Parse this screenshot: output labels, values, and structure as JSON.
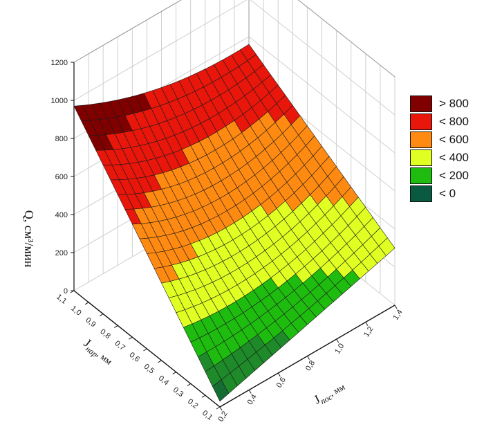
{
  "chart_data": {
    "type": "surface3d",
    "title": "",
    "zlabel": "Q, см³/мин",
    "ylabel_main": "J",
    "ylabel_sub": "нар",
    "ylabel_unit": ", мм",
    "xlabel_main": "J",
    "xlabel_sub": "пос",
    "xlabel_unit": ", мм",
    "zlim": [
      0,
      1200
    ],
    "z_ticks": [
      "1200",
      "1000",
      "800",
      "600",
      "400",
      "200",
      "0"
    ],
    "y_ticks": [
      "1,1",
      "1,0",
      "0,9",
      "0,8",
      "0,7",
      "0,6",
      "0,5",
      "0,4",
      "0,3",
      "0,2",
      "0,1"
    ],
    "x_ticks": [
      "0,2",
      "0,4",
      "0,6",
      "0,8",
      "1,0",
      "1,2",
      "1,4"
    ],
    "surface_corners": [
      {
        "J_nar": 1.1,
        "J_pos": 0.2,
        "Q": 970
      },
      {
        "J_nar": 1.1,
        "J_pos": 1.4,
        "Q": 760
      },
      {
        "J_nar": 0.1,
        "J_pos": 0.2,
        "Q": 30
      },
      {
        "J_nar": 0.1,
        "J_pos": 1.4,
        "Q": 300
      }
    ],
    "grid_lines": true,
    "legend_position": "right",
    "legend": [
      {
        "label": "> 800",
        "color": "#800000"
      },
      {
        "label": "< 800",
        "color": "#e8160b"
      },
      {
        "label": "< 600",
        "color": "#ff8a12"
      },
      {
        "label": "< 400",
        "color": "#e0ff22"
      },
      {
        "label": "< 200",
        "color": "#1fbc10"
      },
      {
        "label": "< 0",
        "color": "#0a5a42"
      }
    ]
  }
}
